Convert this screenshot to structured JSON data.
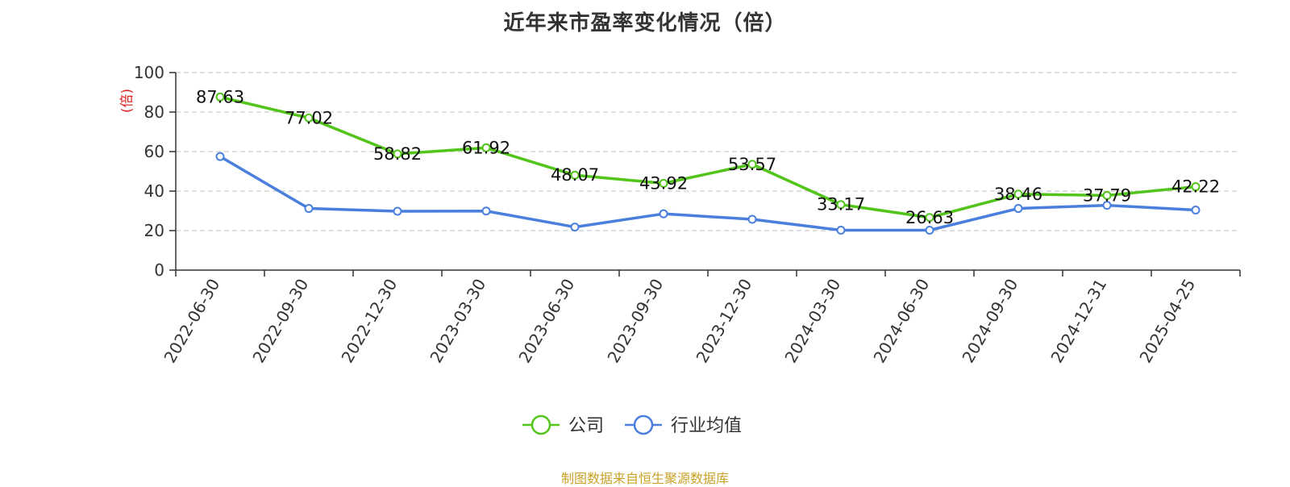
{
  "chart_data": {
    "type": "line",
    "title": "近年来市盈率变化情况（倍）",
    "ylabel": "(倍)",
    "ylim": [
      0,
      100
    ],
    "yticks": [
      0,
      20,
      40,
      60,
      80,
      100
    ],
    "grid": true,
    "legend_position": "bottom",
    "categories": [
      "2022-06-30",
      "2022-09-30",
      "2022-12-30",
      "2023-03-30",
      "2023-06-30",
      "2023-09-30",
      "2023-12-30",
      "2024-03-30",
      "2024-06-30",
      "2024-09-30",
      "2024-12-31",
      "2025-04-25"
    ],
    "series": [
      {
        "name": "公司",
        "color": "#52c41a",
        "show_labels": true,
        "values": [
          87.63,
          77.02,
          58.82,
          61.92,
          48.07,
          43.92,
          53.57,
          33.17,
          26.63,
          38.46,
          37.79,
          42.22
        ]
      },
      {
        "name": "行业均值",
        "color": "#4a7fde",
        "show_labels": false,
        "values": [
          57.5,
          31.2,
          29.8,
          29.9,
          21.8,
          28.5,
          25.7,
          20.2,
          20.2,
          31.2,
          32.8,
          30.4
        ]
      }
    ],
    "ylabel_color": "#e02020",
    "source": "制图数据来自恒生聚源数据库",
    "source_color": "#c9a227"
  }
}
